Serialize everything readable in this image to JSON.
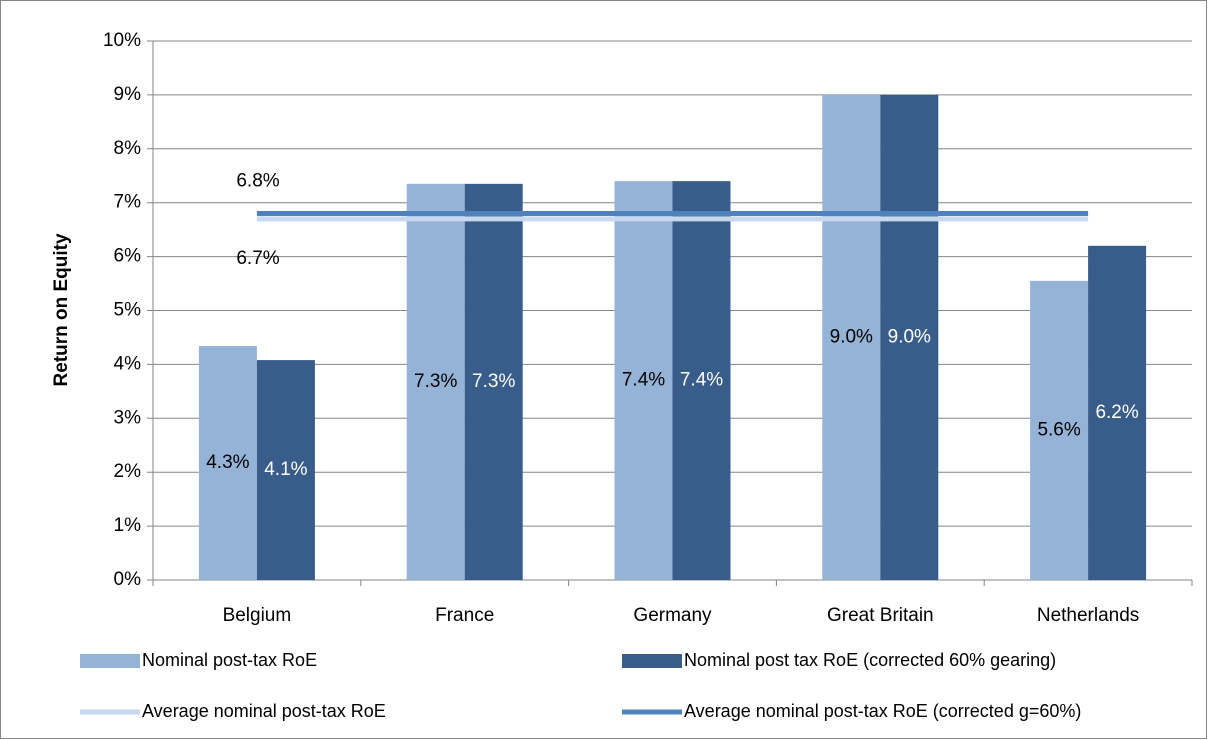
{
  "chart_data": {
    "type": "bar",
    "y_label": "Return on Equity",
    "categories": [
      "Belgium",
      "France",
      "Germany",
      "Great Britain",
      "Netherlands"
    ],
    "series": [
      {
        "name": "Nominal post-tax RoE",
        "type": "bar",
        "color": "#95b3d7",
        "label_color": "#000000",
        "values": [
          4.34,
          7.35,
          7.4,
          9.0,
          5.55
        ],
        "value_labels": [
          "4.3%",
          "7.3%",
          "7.4%",
          "9.0%",
          "5.6%"
        ]
      },
      {
        "name": "Nominal post tax RoE (corrected 60% gearing)",
        "type": "bar",
        "color": "#385d8a",
        "label_color": "#ffffff",
        "values": [
          4.08,
          7.35,
          7.4,
          9.0,
          6.2
        ],
        "value_labels": [
          "4.1%",
          "7.3%",
          "7.4%",
          "9.0%",
          "6.2%"
        ]
      },
      {
        "name": "Average nominal post-tax RoE",
        "type": "line",
        "color": "#c6d9f1",
        "value": 6.7,
        "value_label": "6.7%"
      },
      {
        "name": "Average nominal post-tax RoE (corrected g=60%)",
        "type": "line",
        "color": "#4f81bd",
        "value": 6.8,
        "value_label": "6.8%"
      }
    ],
    "ylim": [
      0,
      10
    ],
    "yticks": [
      {
        "value": 0,
        "label": "0%"
      },
      {
        "value": 1,
        "label": "1%"
      },
      {
        "value": 2,
        "label": "2%"
      },
      {
        "value": 3,
        "label": "3%"
      },
      {
        "value": 4,
        "label": "4%"
      },
      {
        "value": 5,
        "label": "5%"
      },
      {
        "value": 6,
        "label": "6%"
      },
      {
        "value": 7,
        "label": "7%"
      },
      {
        "value": 8,
        "label": "8%"
      },
      {
        "value": 9,
        "label": "9%"
      },
      {
        "value": 10,
        "label": "10%"
      }
    ],
    "grid": true
  }
}
